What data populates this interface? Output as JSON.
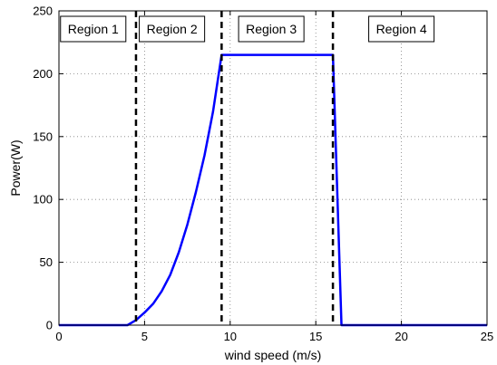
{
  "chart_data": {
    "type": "line",
    "title": "",
    "xlabel": "wind speed (m/s)",
    "ylabel": "Power(W)",
    "xlim": [
      0,
      25
    ],
    "ylim": [
      0,
      250
    ],
    "xticks": [
      0,
      5,
      10,
      15,
      20,
      25
    ],
    "yticks": [
      0,
      50,
      100,
      150,
      200,
      250
    ],
    "grid": true,
    "colors": {
      "curve": "#0000ff",
      "boundary": "#000000",
      "grid": "#808080"
    },
    "series": [
      {
        "x": [
          0,
          4.0,
          4.5,
          5.0,
          5.5,
          6.0,
          6.5,
          7.0,
          7.5,
          8.0,
          8.5,
          9.0,
          9.5,
          16.0,
          16.5,
          25
        ],
        "y": [
          0,
          0,
          4,
          10,
          17,
          27,
          40,
          58,
          80,
          106,
          135,
          170,
          215,
          215,
          0,
          0
        ]
      }
    ],
    "boundaries": [
      4.5,
      9.5,
      16.0
    ],
    "regions": [
      {
        "label": "Region 1",
        "x": 2.0
      },
      {
        "label": "Region 2",
        "x": 6.6
      },
      {
        "label": "Region 3",
        "x": 12.4
      },
      {
        "label": "Region 4",
        "x": 20.0
      }
    ]
  }
}
